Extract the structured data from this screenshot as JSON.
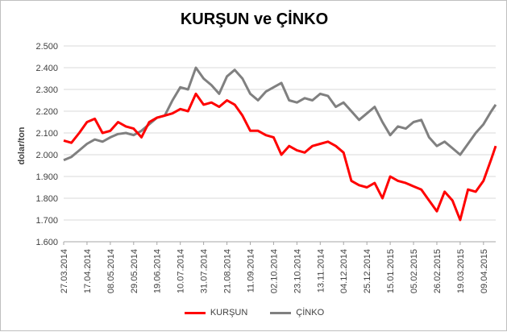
{
  "chart_data": {
    "type": "line",
    "title": "KURŞUN ve ÇİNKO",
    "ylabel": "dolar/ton",
    "xlabel": "",
    "ylim": [
      1600,
      2500
    ],
    "yticks": [
      1600,
      1700,
      1800,
      1900,
      2000,
      2100,
      2200,
      2300,
      2400,
      2500
    ],
    "ytick_labels": [
      "1.600",
      "1.700",
      "1.800",
      "1.900",
      "2.000",
      "2.100",
      "2.200",
      "2.300",
      "2.400",
      "2.500"
    ],
    "xlim": [
      "27.03.2014",
      "20.04.2015"
    ],
    "xtick_labels": [
      "27.03.2014",
      "17.04.2014",
      "08.05.2014",
      "29.05.2014",
      "19.06.2014",
      "10.07.2014",
      "31.07.2014",
      "21.08.2014",
      "11.09.2014",
      "02.10.2014",
      "23.10.2014",
      "13.11.2014",
      "04.12.2014",
      "25.12.2014",
      "15.01.2015",
      "05.02.2015",
      "26.02.2015",
      "19.03.2015",
      "09.04.2015"
    ],
    "grid": true,
    "legend_position": "bottom",
    "series": [
      {
        "name": "KURŞUN",
        "color": "#ff0000",
        "x": [
          "27.03.2014",
          "03.04.2014",
          "10.04.2014",
          "17.04.2014",
          "24.04.2014",
          "01.05.2014",
          "08.05.2014",
          "15.05.2014",
          "22.05.2014",
          "29.05.2014",
          "05.06.2014",
          "12.06.2014",
          "19.06.2014",
          "26.06.2014",
          "03.07.2014",
          "10.07.2014",
          "17.07.2014",
          "24.07.2014",
          "31.07.2014",
          "07.08.2014",
          "14.08.2014",
          "21.08.2014",
          "28.08.2014",
          "04.09.2014",
          "11.09.2014",
          "18.09.2014",
          "25.09.2014",
          "02.10.2014",
          "09.10.2014",
          "16.10.2014",
          "23.10.2014",
          "30.10.2014",
          "06.11.2014",
          "13.11.2014",
          "20.11.2014",
          "27.11.2014",
          "04.12.2014",
          "11.12.2014",
          "18.12.2014",
          "25.12.2014",
          "01.01.2015",
          "08.01.2015",
          "15.01.2015",
          "22.01.2015",
          "29.01.2015",
          "05.02.2015",
          "12.02.2015",
          "19.02.2015",
          "26.02.2015",
          "05.03.2015",
          "12.03.2015",
          "19.03.2015",
          "26.03.2015",
          "02.04.2015",
          "09.04.2015",
          "16.04.2015",
          "20.04.2015"
        ],
        "values": [
          2065,
          2055,
          2100,
          2150,
          2165,
          2100,
          2110,
          2150,
          2130,
          2120,
          2080,
          2150,
          2170,
          2180,
          2190,
          2210,
          2200,
          2280,
          2230,
          2240,
          2220,
          2250,
          2230,
          2180,
          2110,
          2110,
          2090,
          2080,
          2000,
          2040,
          2020,
          2010,
          2040,
          2050,
          2060,
          2040,
          2010,
          1880,
          1860,
          1850,
          1870,
          1800,
          1900,
          1880,
          1870,
          1855,
          1840,
          1790,
          1740,
          1830,
          1790,
          1700,
          1840,
          1830,
          1880,
          1980,
          2040
        ]
      },
      {
        "name": "ÇİNKO",
        "color": "#808080",
        "x": [
          "27.03.2014",
          "03.04.2014",
          "10.04.2014",
          "17.04.2014",
          "24.04.2014",
          "01.05.2014",
          "08.05.2014",
          "15.05.2014",
          "22.05.2014",
          "29.05.2014",
          "05.06.2014",
          "12.06.2014",
          "19.06.2014",
          "26.06.2014",
          "03.07.2014",
          "10.07.2014",
          "17.07.2014",
          "24.07.2014",
          "31.07.2014",
          "07.08.2014",
          "14.08.2014",
          "21.08.2014",
          "28.08.2014",
          "04.09.2014",
          "11.09.2014",
          "18.09.2014",
          "25.09.2014",
          "02.10.2014",
          "09.10.2014",
          "16.10.2014",
          "23.10.2014",
          "30.10.2014",
          "06.11.2014",
          "13.11.2014",
          "20.11.2014",
          "27.11.2014",
          "04.12.2014",
          "11.12.2014",
          "18.12.2014",
          "25.12.2014",
          "01.01.2015",
          "08.01.2015",
          "15.01.2015",
          "22.01.2015",
          "29.01.2015",
          "05.02.2015",
          "12.02.2015",
          "19.02.2015",
          "26.02.2015",
          "05.03.2015",
          "12.03.2015",
          "19.03.2015",
          "26.03.2015",
          "02.04.2015",
          "09.04.2015",
          "16.04.2015",
          "20.04.2015"
        ],
        "values": [
          1975,
          1990,
          2020,
          2050,
          2070,
          2060,
          2080,
          2095,
          2100,
          2090,
          2110,
          2140,
          2170,
          2180,
          2250,
          2310,
          2300,
          2400,
          2350,
          2320,
          2280,
          2360,
          2390,
          2350,
          2280,
          2250,
          2290,
          2310,
          2330,
          2250,
          2240,
          2260,
          2250,
          2280,
          2270,
          2220,
          2240,
          2200,
          2160,
          2190,
          2220,
          2150,
          2090,
          2130,
          2120,
          2150,
          2160,
          2080,
          2040,
          2060,
          2030,
          2000,
          2050,
          2100,
          2140,
          2200,
          2230
        ]
      }
    ]
  }
}
